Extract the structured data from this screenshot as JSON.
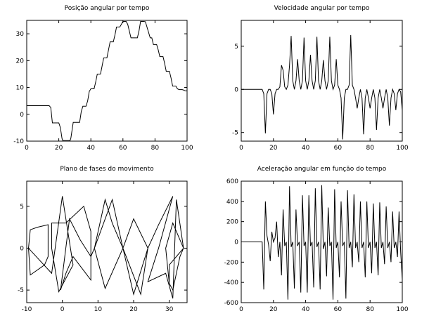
{
  "chart_data": [
    {
      "type": "line",
      "title": "Posição angular por tempo",
      "xlabel": "",
      "ylabel": "",
      "xlim": [
        0,
        100
      ],
      "ylim": [
        -10,
        35
      ],
      "xticks": [
        0,
        20,
        40,
        60,
        80,
        100
      ],
      "yticks": [
        -10,
        0,
        10,
        20,
        30
      ],
      "grid": false,
      "series": [
        {
          "x": [
            0,
            14,
            15,
            16,
            20,
            21,
            22,
            22.5,
            27,
            27.5,
            29,
            33,
            34,
            35,
            37,
            38,
            39,
            40,
            42,
            43,
            44,
            46,
            47,
            48,
            50,
            51,
            52,
            54,
            55,
            56,
            58,
            59,
            60,
            62,
            63,
            65,
            66,
            67,
            69,
            70,
            71,
            73,
            74,
            77,
            78,
            79,
            81,
            82,
            83,
            85,
            86,
            87,
            89,
            90,
            91,
            93,
            94,
            95,
            97,
            98,
            99,
            100
          ],
          "y": [
            3.2,
            3.2,
            2.5,
            -3.2,
            -3.2,
            -5,
            -9,
            -9.8,
            -9.8,
            -9,
            -3,
            -3,
            1,
            3,
            3,
            5,
            8.5,
            9.5,
            9.5,
            12,
            15,
            15,
            18,
            21,
            21,
            24,
            27,
            27,
            29.5,
            32.5,
            32.5,
            33.5,
            34.6,
            34.6,
            33.5,
            28.5,
            28.5,
            28.5,
            28.5,
            31,
            34.6,
            34.6,
            34.5,
            28.5,
            28.5,
            26,
            26,
            24,
            21.5,
            21.5,
            19,
            16,
            16,
            13.5,
            10.5,
            10.5,
            9.5,
            9.2,
            9.2,
            9,
            8.7,
            8.7
          ]
        }
      ]
    },
    {
      "type": "line",
      "title": "Velocidade angular por tempo",
      "xlabel": "",
      "ylabel": "",
      "xlim": [
        0,
        100
      ],
      "ylim": [
        -6,
        8
      ],
      "xticks": [
        0,
        20,
        40,
        60,
        80,
        100
      ],
      "yticks": [
        -5,
        0,
        5
      ],
      "grid": false,
      "series": [
        {
          "x": [
            0,
            12,
            13,
            14,
            15,
            16,
            17,
            18,
            19,
            20,
            21,
            22,
            23,
            24,
            25,
            26,
            27,
            28,
            29,
            30,
            31,
            32,
            33,
            34,
            35,
            36,
            37,
            38,
            39,
            40,
            41,
            42,
            43,
            44,
            45,
            46,
            47,
            48,
            49,
            50,
            51,
            52,
            53,
            54,
            55,
            56,
            57,
            58,
            59,
            60,
            61,
            62,
            63,
            64,
            65,
            66,
            67,
            68,
            69,
            70,
            71,
            72,
            73,
            74,
            75,
            76,
            77,
            78,
            79,
            80,
            81,
            82,
            83,
            84,
            85,
            86,
            87,
            88,
            89,
            90,
            91,
            92,
            93,
            94,
            95,
            96,
            97,
            98,
            99,
            100
          ],
          "y": [
            0,
            0,
            0,
            -0.5,
            -5.1,
            -0.5,
            0,
            0,
            -0.5,
            -2.9,
            -0.5,
            0,
            0,
            0.3,
            2.8,
            2.2,
            0.3,
            0,
            0.5,
            2.8,
            6.2,
            1,
            0,
            1,
            3.5,
            1,
            0,
            1,
            6,
            1,
            0,
            1,
            4,
            1,
            0,
            1,
            6.1,
            1,
            0,
            1,
            3.4,
            1,
            0,
            1,
            6.1,
            1,
            0,
            0.5,
            3.5,
            0.5,
            0,
            -1,
            -5.8,
            -1,
            0,
            0,
            0.5,
            6.3,
            0.5,
            0,
            -1,
            -2.2,
            -1,
            0,
            -1,
            -5.2,
            -1,
            0,
            -1,
            -2.2,
            -1,
            0,
            -1,
            -4.7,
            -1,
            0,
            -1,
            -2.2,
            -1,
            0,
            -1,
            -4.2,
            -1,
            0,
            -0.5,
            -2.4,
            -0.5,
            0,
            -0.3,
            -2.4
          ]
        }
      ]
    },
    {
      "type": "line",
      "title": "Plano de fases do movimento",
      "xlabel": "",
      "ylabel": "",
      "xlim": [
        -10,
        35
      ],
      "ylim": [
        -6.5,
        8
      ],
      "xticks": [
        -10,
        0,
        10,
        20,
        30
      ],
      "yticks": [
        -5,
        0,
        5
      ],
      "grid": false,
      "series": [
        {
          "x": [
            -9.5,
            -9,
            -7,
            -4,
            -4,
            -5,
            -9,
            -9.5,
            -3,
            0,
            3,
            -1,
            -3,
            -3,
            1,
            6,
            8,
            8,
            3,
            1,
            -0.5,
            2,
            5,
            8,
            9,
            12,
            14,
            17,
            12,
            9,
            14,
            17,
            20,
            24,
            20,
            17,
            22,
            24,
            27,
            31,
            27,
            24,
            29,
            31,
            32,
            34,
            31,
            29,
            30,
            31,
            33,
            34,
            30,
            30
          ],
          "y": [
            0,
            2.2,
            2.5,
            2.8,
            -1,
            -2,
            -3.2,
            0,
            -3,
            6.2,
            -2,
            -5.2,
            0,
            3,
            3,
            5,
            2,
            -3.8,
            -1,
            -3,
            -5,
            3.5,
            1,
            -1,
            0,
            5.8,
            3,
            0,
            -4.8,
            0,
            5.8,
            0,
            -5.5,
            0,
            3.5,
            0,
            -5.5,
            0,
            2.8,
            6.2,
            0,
            -4,
            -3,
            -6,
            5.8,
            0,
            3,
            0,
            -4.2,
            -5,
            -1,
            0,
            -2,
            -4
          ]
        }
      ]
    },
    {
      "type": "line",
      "title": "Aceleração angular em função do tempo",
      "xlabel": "",
      "ylabel": "",
      "xlim": [
        0,
        100
      ],
      "ylim": [
        -600,
        600
      ],
      "xticks": [
        0,
        20,
        40,
        60,
        80,
        100
      ],
      "yticks": [
        -600,
        -400,
        -200,
        0,
        200,
        400,
        600
      ],
      "grid": false,
      "series": [
        {
          "x": [
            0,
            12,
            13,
            14,
            15,
            16,
            17,
            18,
            19,
            20,
            21,
            22,
            23,
            24,
            25,
            26,
            27,
            28,
            29,
            30,
            31,
            32,
            33,
            34,
            35,
            36,
            37,
            38,
            39,
            40,
            41,
            42,
            43,
            44,
            45,
            46,
            47,
            48,
            49,
            50,
            51,
            52,
            53,
            54,
            55,
            56,
            57,
            58,
            59,
            60,
            61,
            62,
            63,
            64,
            65,
            66,
            67,
            68,
            69,
            70,
            71,
            72,
            73,
            74,
            75,
            76,
            77,
            78,
            79,
            80,
            81,
            82,
            83,
            84,
            85,
            86,
            87,
            88,
            89,
            90,
            91,
            92,
            93,
            94,
            95,
            96,
            97,
            98,
            99,
            100
          ],
          "y": [
            0,
            0,
            0,
            -470,
            400,
            60,
            -30,
            -190,
            100,
            0,
            40,
            200,
            -150,
            0,
            -330,
            320,
            -40,
            0,
            -570,
            550,
            -50,
            0,
            -460,
            320,
            -40,
            0,
            -500,
            460,
            -40,
            0,
            -500,
            460,
            -40,
            0,
            -450,
            530,
            -50,
            0,
            -470,
            560,
            -70,
            0,
            -340,
            340,
            -40,
            0,
            -570,
            520,
            -60,
            0,
            -350,
            400,
            -40,
            0,
            -560,
            510,
            -60,
            0,
            -250,
            470,
            -60,
            0,
            -200,
            400,
            -60,
            0,
            -350,
            400,
            -60,
            0,
            -310,
            380,
            -60,
            0,
            -330,
            390,
            -60,
            0,
            -220,
            350,
            -60,
            0,
            -200,
            300,
            -60,
            0,
            -150,
            300,
            -100,
            -370
          ]
        }
      ]
    }
  ]
}
